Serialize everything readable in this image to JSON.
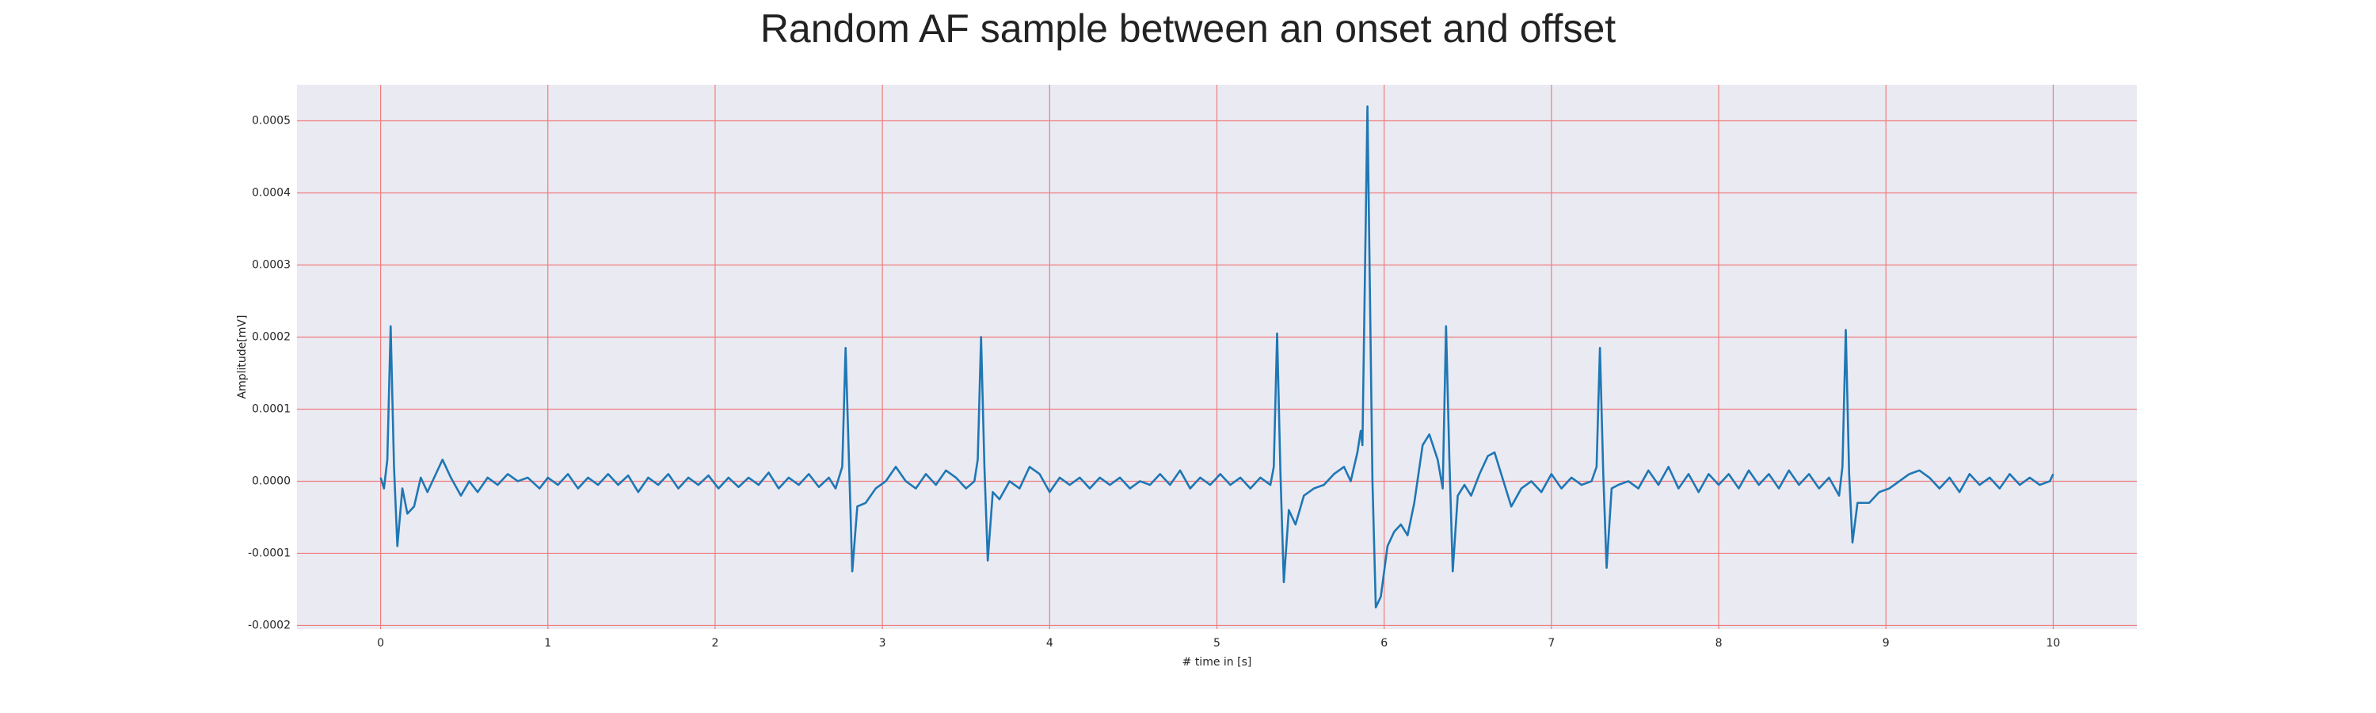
{
  "chart_data": {
    "type": "line",
    "title": "Random AF sample between an onset and offset",
    "xlabel": "# time in [s]",
    "ylabel": "Amplitude[mV]",
    "color": "#1f77b4",
    "grid": true,
    "grid_color": "#f07c7c",
    "background": "#eaeaf2",
    "xlim": [
      -0.5,
      10.5
    ],
    "ylim": [
      -0.000205,
      0.00055
    ],
    "xticks": [
      0,
      1,
      2,
      3,
      4,
      5,
      6,
      7,
      8,
      9,
      10
    ],
    "yticks": [
      -0.0002,
      -0.0001,
      {
        "value": 0,
        "label": "0.0000"
      },
      0.0001,
      0.0002,
      0.0003,
      0.0004,
      0.0005
    ],
    "x": [
      0,
      0.02,
      0.04,
      0.06,
      0.08,
      0.1,
      0.13,
      0.16,
      0.2,
      0.24,
      0.28,
      0.33,
      0.37,
      0.42,
      0.48,
      0.53,
      0.58,
      0.64,
      0.7,
      0.76,
      0.82,
      0.88,
      0.95,
      1.0,
      1.06,
      1.12,
      1.18,
      1.24,
      1.3,
      1.36,
      1.42,
      1.48,
      1.54,
      1.6,
      1.66,
      1.72,
      1.78,
      1.84,
      1.9,
      1.96,
      2.02,
      2.08,
      2.14,
      2.2,
      2.26,
      2.32,
      2.38,
      2.44,
      2.5,
      2.56,
      2.62,
      2.68,
      2.72,
      2.76,
      2.78,
      2.8,
      2.82,
      2.85,
      2.9,
      2.96,
      3.02,
      3.08,
      3.14,
      3.2,
      3.26,
      3.32,
      3.38,
      3.44,
      3.5,
      3.55,
      3.57,
      3.59,
      3.61,
      3.63,
      3.66,
      3.7,
      3.76,
      3.82,
      3.88,
      3.94,
      4.0,
      4.06,
      4.12,
      4.18,
      4.24,
      4.3,
      4.36,
      4.42,
      4.48,
      4.54,
      4.6,
      4.66,
      4.72,
      4.78,
      4.84,
      4.9,
      4.96,
      5.02,
      5.08,
      5.14,
      5.2,
      5.26,
      5.32,
      5.34,
      5.36,
      5.38,
      5.4,
      5.43,
      5.47,
      5.52,
      5.58,
      5.64,
      5.7,
      5.76,
      5.8,
      5.84,
      5.86,
      5.87,
      5.9,
      5.93,
      5.95,
      5.98,
      6.02,
      6.06,
      6.1,
      6.14,
      6.18,
      6.23,
      6.27,
      6.32,
      6.35,
      6.37,
      6.39,
      6.41,
      6.44,
      6.48,
      6.52,
      6.57,
      6.62,
      6.66,
      6.7,
      6.76,
      6.82,
      6.88,
      6.94,
      7.0,
      7.06,
      7.12,
      7.18,
      7.24,
      7.27,
      7.29,
      7.31,
      7.33,
      7.36,
      7.4,
      7.46,
      7.52,
      7.58,
      7.64,
      7.7,
      7.76,
      7.82,
      7.88,
      7.94,
      8.0,
      8.06,
      8.12,
      8.18,
      8.24,
      8.3,
      8.36,
      8.42,
      8.48,
      8.54,
      8.6,
      8.66,
      8.72,
      8.74,
      8.76,
      8.78,
      8.8,
      8.83,
      8.9,
      8.96,
      9.02,
      9.08,
      9.14,
      9.2,
      9.26,
      9.32,
      9.38,
      9.44,
      9.5,
      9.56,
      9.62,
      9.68,
      9.74,
      9.8,
      9.86,
      9.92,
      9.98,
      10.0
    ],
    "values": [
      5e-06,
      -1e-05,
      3e-05,
      0.000215,
      2e-05,
      -9e-05,
      -1e-05,
      -4.5e-05,
      -3.5e-05,
      5e-06,
      -1.5e-05,
      1e-05,
      3e-05,
      5e-06,
      -2e-05,
      0,
      -1.5e-05,
      5e-06,
      -5e-06,
      1e-05,
      0,
      5e-06,
      -1e-05,
      5e-06,
      -5e-06,
      1e-05,
      -1e-05,
      5e-06,
      -5e-06,
      1e-05,
      -5e-06,
      8e-06,
      -1.5e-05,
      5e-06,
      -5e-06,
      1e-05,
      -1e-05,
      5e-06,
      -5e-06,
      8e-06,
      -1e-05,
      5e-06,
      -8e-06,
      5e-06,
      -5e-06,
      1.2e-05,
      -1e-05,
      5e-06,
      -5e-06,
      1e-05,
      -8e-06,
      5e-06,
      -1e-05,
      2e-05,
      0.000185,
      3e-05,
      -0.000125,
      -3.5e-05,
      -3e-05,
      -1e-05,
      0,
      2e-05,
      0,
      -1e-05,
      1e-05,
      -5e-06,
      1.5e-05,
      5e-06,
      -1e-05,
      0,
      3e-05,
      0.0002,
      2e-05,
      -0.00011,
      -1.5e-05,
      -2.5e-05,
      0,
      -1e-05,
      2e-05,
      1e-05,
      -1.5e-05,
      5e-06,
      -5e-06,
      5e-06,
      -1e-05,
      5e-06,
      -5e-06,
      5e-06,
      -1e-05,
      0,
      -5e-06,
      1e-05,
      -5e-06,
      1.5e-05,
      -1e-05,
      5e-06,
      -5e-06,
      1e-05,
      -5e-06,
      5e-06,
      -1e-05,
      5e-06,
      -5e-06,
      2e-05,
      0.000205,
      1e-05,
      -0.00014,
      -4e-05,
      -6e-05,
      -2e-05,
      -1e-05,
      -5e-06,
      1e-05,
      2e-05,
      0,
      4e-05,
      7e-05,
      5e-05,
      0.00052,
      0,
      -0.000175,
      -0.00016,
      -9e-05,
      -7e-05,
      -6e-05,
      -7.5e-05,
      -3e-05,
      5e-05,
      6.5e-05,
      3e-05,
      -1e-05,
      0.000215,
      3e-05,
      -0.000125,
      -2e-05,
      -5e-06,
      -2e-05,
      1e-05,
      3.5e-05,
      4e-05,
      1e-05,
      -3.5e-05,
      -1e-05,
      0,
      -1.5e-05,
      1e-05,
      -1e-05,
      5e-06,
      -5e-06,
      0,
      2e-05,
      0.000185,
      1e-05,
      -0.00012,
      -1e-05,
      -5e-06,
      0,
      -1e-05,
      1.5e-05,
      -5e-06,
      2e-05,
      -1e-05,
      1e-05,
      -1.5e-05,
      1e-05,
      -5e-06,
      1e-05,
      -1e-05,
      1.5e-05,
      -5e-06,
      1e-05,
      -1e-05,
      1.5e-05,
      -5e-06,
      1e-05,
      -1e-05,
      5e-06,
      -2e-05,
      2e-05,
      0.00021,
      1e-05,
      -8.5e-05,
      -3e-05,
      -3e-05,
      -1.5e-05,
      -1e-05,
      0,
      1e-05,
      1.5e-05,
      5e-06,
      -1e-05,
      5e-06,
      -1.5e-05,
      1e-05,
      -5e-06,
      5e-06,
      -1e-05,
      1e-05,
      -5e-06,
      5e-06,
      -5e-06,
      0,
      1e-05
    ]
  }
}
